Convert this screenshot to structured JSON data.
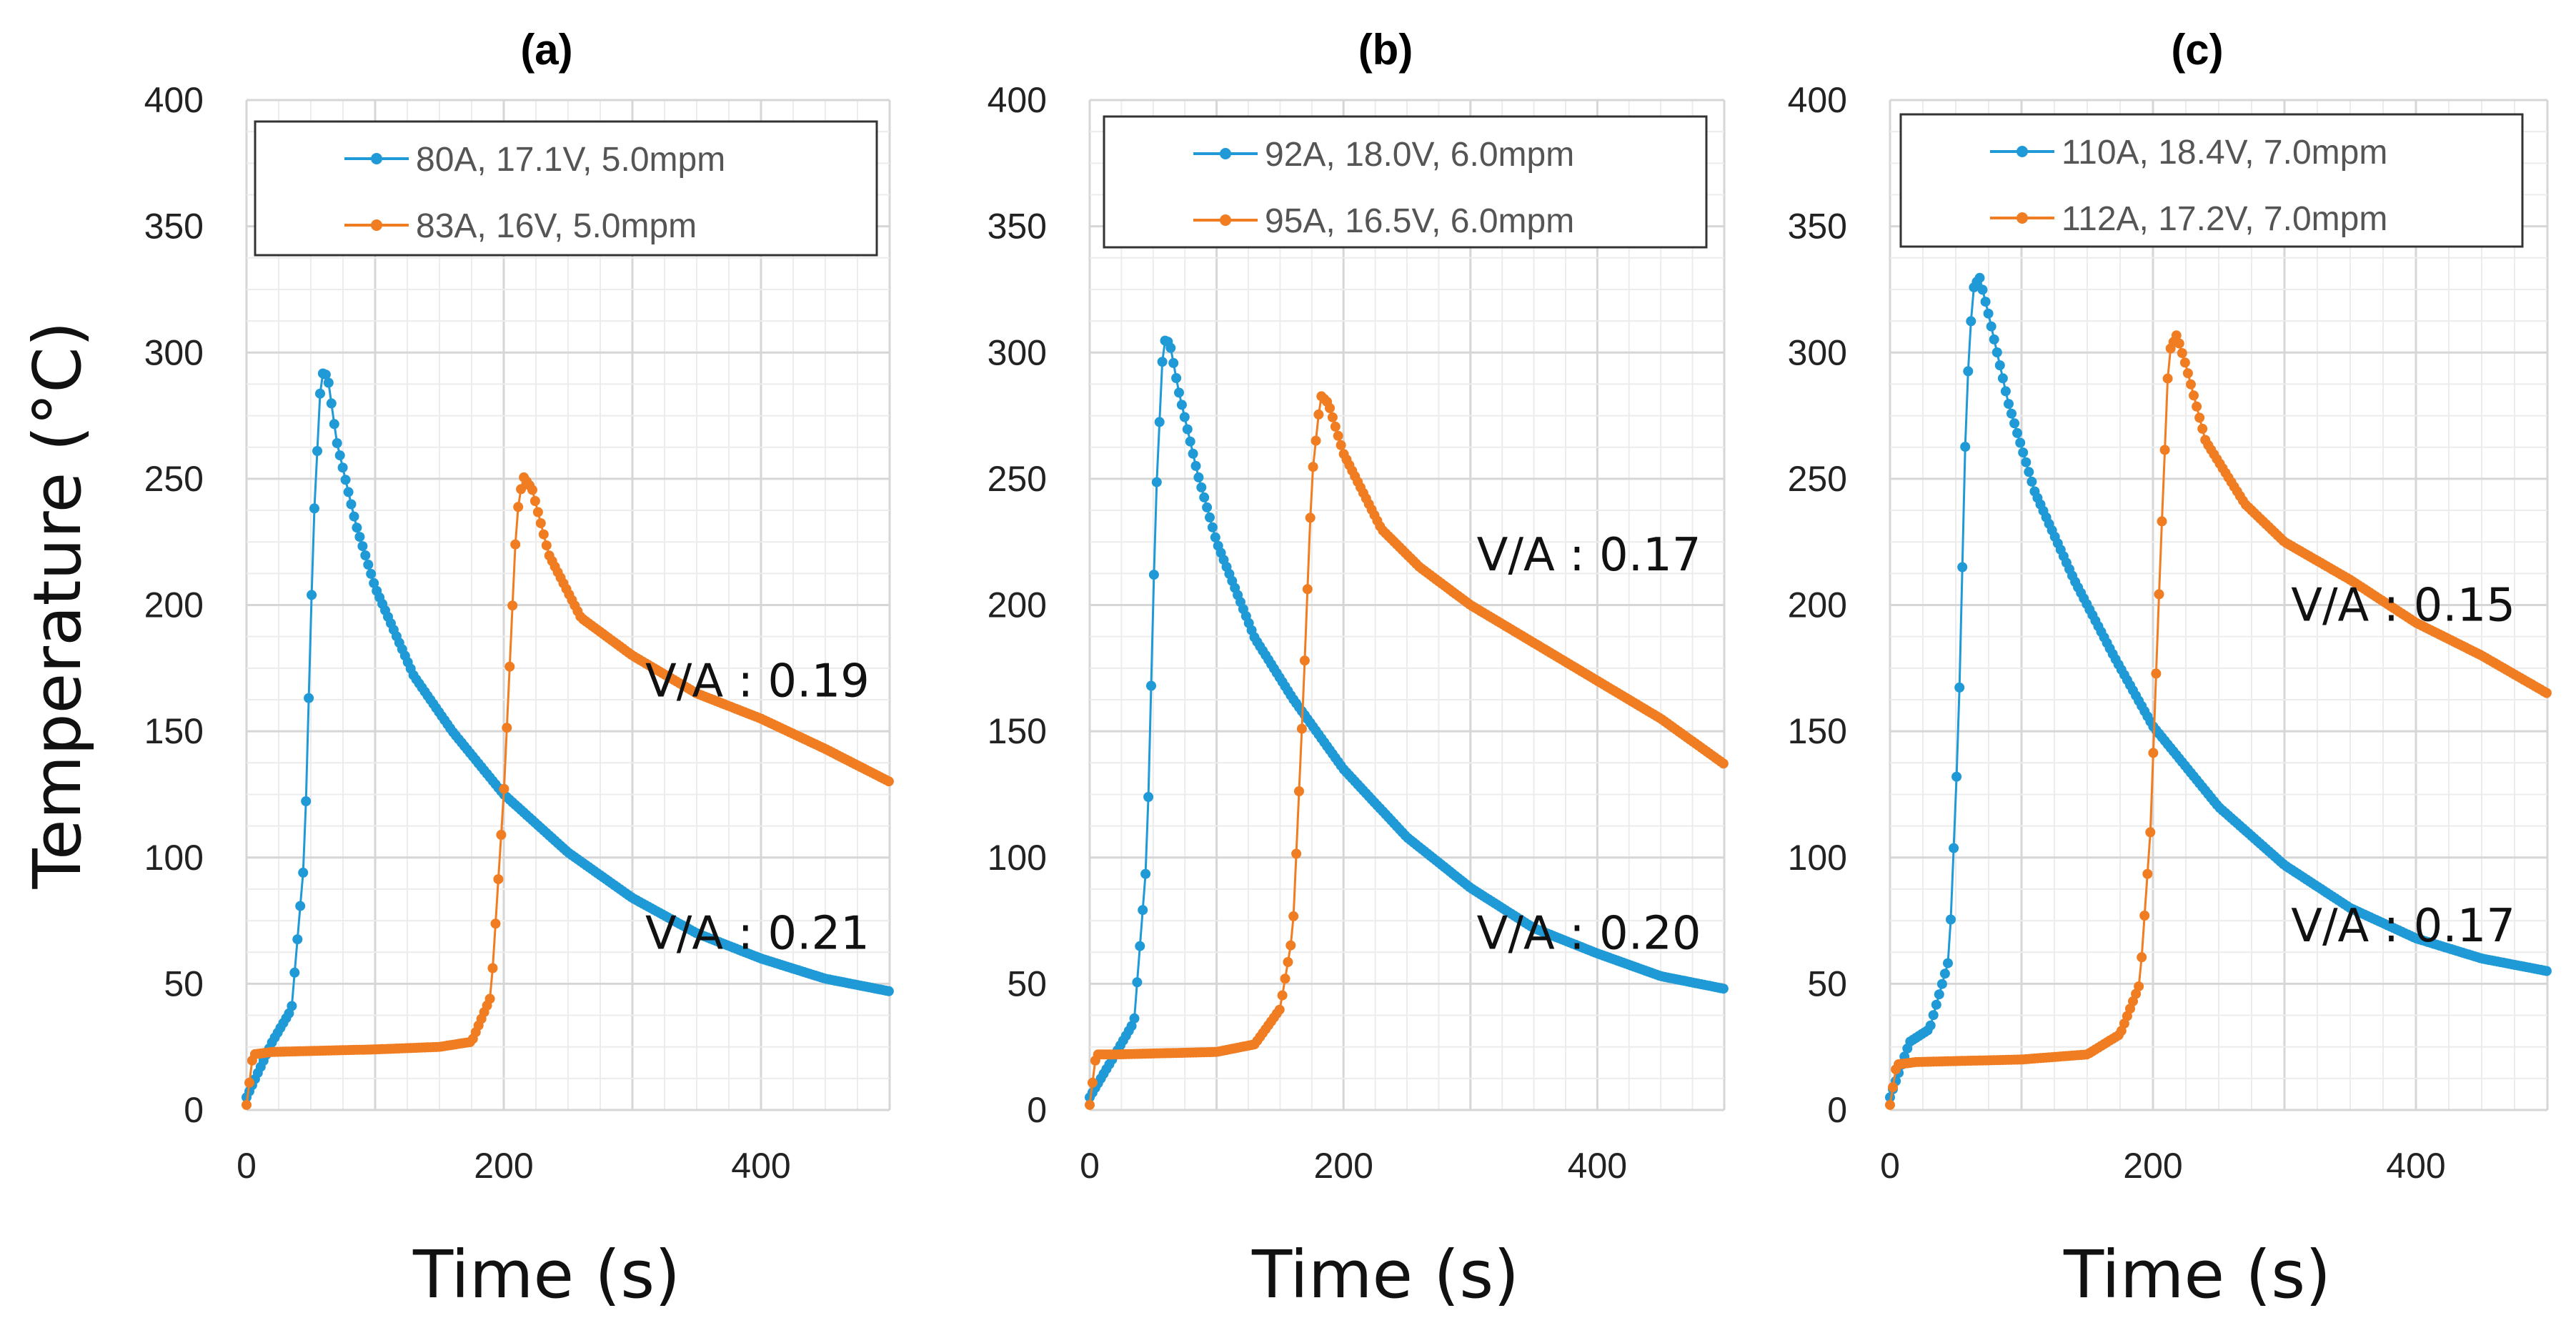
{
  "chart_data": [
    {
      "type": "line",
      "title": "(a)",
      "xlabel": "Time  (s)",
      "ylabel": "Temperature  (°C)",
      "xlim": [
        0,
        500
      ],
      "ylim": [
        0,
        400
      ],
      "xticks": [
        "0",
        "200",
        "400"
      ],
      "yticks": [
        "0",
        "50",
        "100",
        "150",
        "200",
        "250",
        "300",
        "350",
        "400"
      ],
      "grid": true,
      "legend_position": "top",
      "series": [
        {
          "name": "80A, 17.1V, 5.0mpm",
          "color": "#1f9ad6",
          "x": [
            0,
            20,
            35,
            45,
            52,
            58,
            63,
            70,
            85,
            100,
            130,
            160,
            200,
            250,
            300,
            350,
            400,
            450,
            500
          ],
          "y": [
            5,
            27,
            40,
            100,
            230,
            292,
            291,
            265,
            232,
            207,
            172,
            150,
            125,
            102,
            84,
            70,
            60,
            52,
            47
          ]
        },
        {
          "name": "83A, 16V, 5.0mpm",
          "color": "#f07d22",
          "x": [
            0,
            5,
            20,
            100,
            150,
            175,
            190,
            200,
            210,
            215,
            222,
            235,
            260,
            300,
            350,
            400,
            450,
            500
          ],
          "y": [
            2,
            22,
            23,
            24,
            25,
            27,
            45,
            125,
            235,
            251,
            246,
            220,
            195,
            180,
            165,
            155,
            143,
            130
          ]
        }
      ],
      "annotations": [
        {
          "text": "V/A : 0.19",
          "x": 310,
          "y": 170
        },
        {
          "text": "V/A : 0.21",
          "x": 310,
          "y": 70
        }
      ]
    },
    {
      "type": "line",
      "title": "(b)",
      "xlabel": "Time  (s)",
      "ylabel": "",
      "xlim": [
        0,
        500
      ],
      "ylim": [
        0,
        400
      ],
      "xticks": [
        "0",
        "200",
        "400"
      ],
      "yticks": [
        "0",
        "50",
        "100",
        "150",
        "200",
        "250",
        "300",
        "350",
        "400"
      ],
      "grid": true,
      "legend_position": "top",
      "series": [
        {
          "name": "92A, 18.0V, 6.0mpm",
          "color": "#1f9ad6",
          "x": [
            0,
            20,
            35,
            45,
            52,
            58,
            63,
            70,
            85,
            100,
            130,
            160,
            200,
            250,
            300,
            350,
            400,
            450,
            500
          ],
          "y": [
            5,
            22,
            35,
            100,
            240,
            305,
            304,
            285,
            252,
            225,
            187,
            163,
            135,
            108,
            88,
            72,
            62,
            53,
            48
          ]
        },
        {
          "name": "95A, 16.5V, 6.0mpm",
          "color": "#f07d22",
          "x": [
            0,
            5,
            20,
            100,
            130,
            150,
            160,
            168,
            175,
            182,
            188,
            200,
            230,
            260,
            300,
            350,
            400,
            450,
            500
          ],
          "y": [
            2,
            22,
            22,
            23,
            26,
            40,
            70,
            160,
            250,
            283,
            280,
            260,
            230,
            215,
            200,
            185,
            170,
            155,
            137
          ]
        }
      ],
      "annotations": [
        {
          "text": "V/A : 0.17",
          "x": 305,
          "y": 220
        },
        {
          "text": "V/A : 0.20",
          "x": 305,
          "y": 70
        }
      ]
    },
    {
      "type": "line",
      "title": "(c)",
      "xlabel": "Time  (s)",
      "ylabel": "",
      "xlim": [
        0,
        500
      ],
      "ylim": [
        0,
        400
      ],
      "xticks": [
        "0",
        "200",
        "400"
      ],
      "yticks": [
        "0",
        "50",
        "100",
        "150",
        "200",
        "250",
        "300",
        "350",
        "400"
      ],
      "grid": true,
      "legend_position": "top",
      "series": [
        {
          "name": "110A, 18.4V, 7.0mpm",
          "color": "#1f9ad6",
          "x": [
            0,
            15,
            30,
            45,
            52,
            58,
            63,
            68,
            75,
            90,
            110,
            140,
            170,
            200,
            250,
            300,
            350,
            400,
            450,
            500
          ],
          "y": [
            5,
            27,
            32,
            60,
            150,
            280,
            325,
            330,
            315,
            280,
            245,
            210,
            180,
            152,
            120,
            97,
            80,
            68,
            60,
            55
          ]
        },
        {
          "name": "112A, 17.2V, 7.0mpm",
          "color": "#f07d22",
          "x": [
            0,
            5,
            20,
            100,
            150,
            175,
            190,
            198,
            205,
            212,
            218,
            225,
            240,
            270,
            300,
            350,
            400,
            450,
            500
          ],
          "y": [
            2,
            18,
            19,
            20,
            22,
            30,
            50,
            110,
            210,
            300,
            307,
            295,
            265,
            240,
            225,
            210,
            193,
            180,
            165
          ]
        }
      ],
      "annotations": [
        {
          "text": "V/A : 0.15",
          "x": 305,
          "y": 200
        },
        {
          "text": "V/A : 0.17",
          "x": 305,
          "y": 73
        }
      ]
    }
  ]
}
